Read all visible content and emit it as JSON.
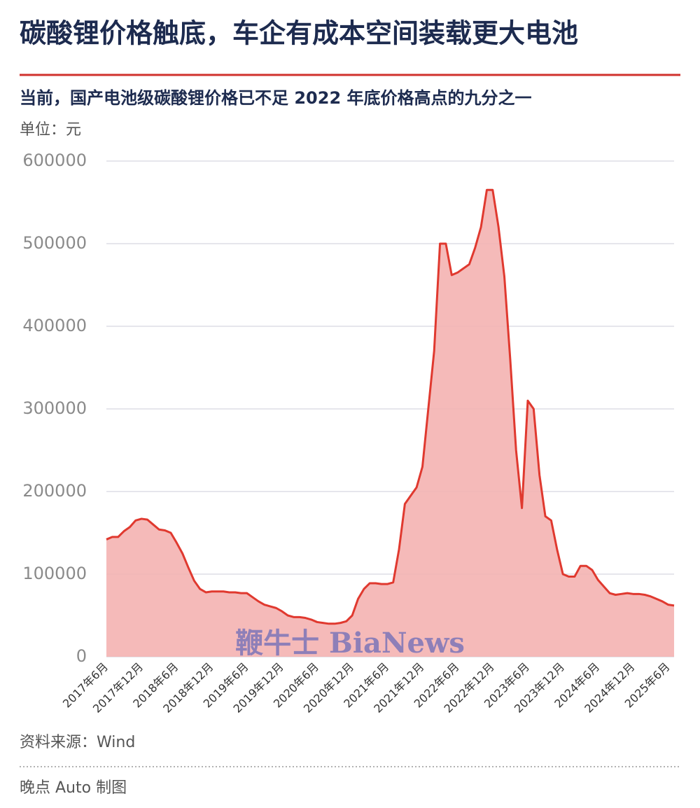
{
  "chart_data": {
    "type": "area",
    "title": "碳酸锂价格触底，车企有成本空间装载更大电池",
    "subtitle": "当前，国产电池级碳酸锂价格已不足 2022 年底价格高点的九分之一",
    "unit": "单位：元",
    "source": "资料来源：Wind",
    "credit": "晚点 Auto 制图",
    "watermark": "鞭牛士 BiaNews",
    "color": "#e0392f",
    "fill": "#f4b3b1",
    "grid": true,
    "ylim": [
      0,
      600000
    ],
    "yticks": [
      0,
      100000,
      200000,
      300000,
      400000,
      500000,
      600000
    ],
    "categories": [
      "2017年6月",
      null,
      null,
      null,
      null,
      null,
      "2017年12月",
      null,
      null,
      null,
      null,
      null,
      "2018年6月",
      null,
      null,
      null,
      null,
      null,
      "2018年12月",
      null,
      null,
      null,
      null,
      null,
      "2019年6月",
      null,
      null,
      null,
      null,
      null,
      "2019年12月",
      null,
      null,
      null,
      null,
      null,
      "2020年6月",
      null,
      null,
      null,
      null,
      null,
      "2020年12月",
      null,
      null,
      null,
      null,
      null,
      "2021年6月",
      null,
      null,
      null,
      null,
      null,
      "2021年12月",
      null,
      null,
      null,
      null,
      null,
      "2022年6月",
      null,
      null,
      null,
      null,
      null,
      "2022年12月",
      null,
      null,
      null,
      null,
      null,
      "2023年6月",
      null,
      null,
      null,
      null,
      null,
      "2023年12月",
      null,
      null,
      null,
      null,
      null,
      "2024年6月",
      null,
      null,
      null,
      null,
      null,
      "2024年12月",
      null,
      null,
      null,
      null,
      null,
      "2025年6月",
      null
    ],
    "values": [
      142000,
      145000,
      145000,
      152000,
      157000,
      165000,
      167000,
      166000,
      160000,
      154000,
      153000,
      150000,
      138000,
      125000,
      108000,
      92000,
      82000,
      78000,
      79000,
      79000,
      79000,
      78000,
      78000,
      77000,
      77000,
      72000,
      67000,
      63000,
      61000,
      59000,
      55000,
      50000,
      48000,
      48000,
      47000,
      45000,
      42000,
      41000,
      40000,
      40000,
      41000,
      43000,
      50000,
      70000,
      82000,
      89000,
      89000,
      88000,
      88000,
      90000,
      130000,
      185000,
      195000,
      205000,
      230000,
      300000,
      370000,
      500000,
      500000,
      462000,
      465000,
      470000,
      475000,
      495000,
      520000,
      565000,
      565000,
      520000,
      460000,
      360000,
      250000,
      180000,
      310000,
      300000,
      220000,
      170000,
      165000,
      130000,
      100000,
      97000,
      97000,
      110000,
      110000,
      105000,
      93000,
      85000,
      77000,
      75000,
      76000,
      77000,
      76000,
      76000,
      75000,
      73000,
      70000,
      67000,
      63000,
      62000
    ]
  }
}
